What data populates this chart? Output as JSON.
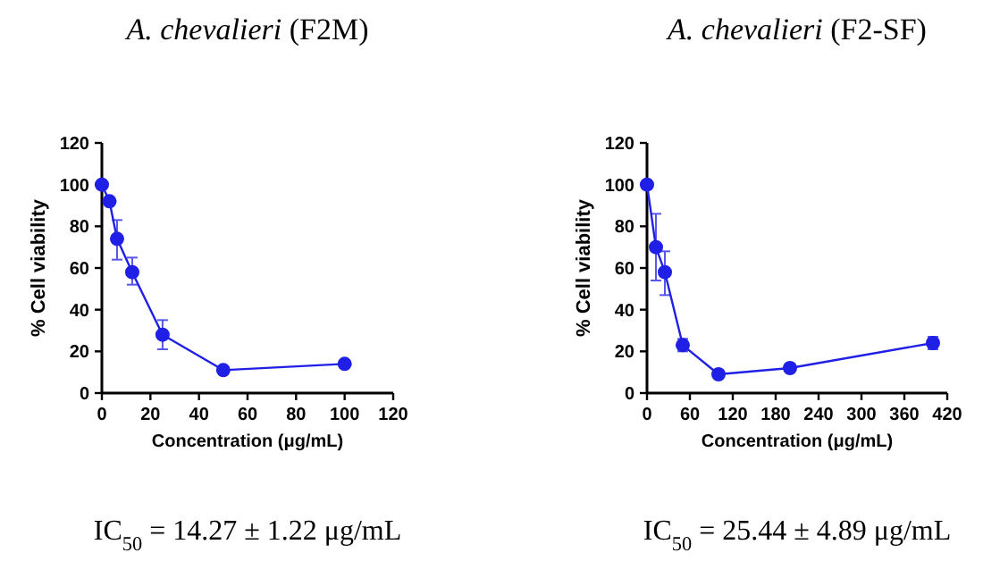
{
  "chart_data": [
    {
      "type": "line",
      "title": "A. chevalieri (F2M)",
      "xlabel": "Concentration (μg/mL)",
      "ylabel": "% Cell viability",
      "annotations": [
        "IC$_{50}$ = 14.27 ± 1.22 μg/mL"
      ],
      "marker": "circle",
      "color": "#1f1fe6",
      "x": [
        0,
        3.125,
        6.25,
        12.5,
        25,
        50,
        100
      ],
      "values": [
        100,
        92,
        74,
        58,
        28,
        11,
        14
      ],
      "errors": [
        null,
        null,
        [
          64,
          83
        ],
        [
          52,
          65
        ],
        [
          21,
          35
        ],
        null,
        null
      ],
      "xlim": [
        0,
        120
      ],
      "xticks": [
        0,
        20,
        40,
        60,
        80,
        100,
        120
      ],
      "ylim": [
        0,
        120
      ],
      "yticks": [
        0,
        20,
        40,
        60,
        80,
        100,
        120
      ]
    },
    {
      "type": "line",
      "title": "A. chevalieri (F2-SF)",
      "xlabel": "Concentration (μg/mL)",
      "ylabel": "% Cell viability",
      "annotations": [
        "IC$_{50}$ = 25.44 ± 4.89 μg/mL"
      ],
      "marker": "circle",
      "color": "#1f1fe6",
      "x": [
        0,
        12.5,
        25,
        50,
        100,
        200,
        400
      ],
      "values": [
        100,
        70,
        58,
        23,
        9,
        12,
        24
      ],
      "errors": [
        null,
        [
          54,
          86
        ],
        [
          47,
          68
        ],
        [
          20,
          26
        ],
        null,
        null,
        [
          21,
          27
        ]
      ],
      "xlim": [
        0,
        420
      ],
      "xticks": [
        0,
        60,
        120,
        180,
        240,
        300,
        360,
        420
      ],
      "ylim": [
        0,
        120
      ],
      "yticks": [
        0,
        20,
        40,
        60,
        80,
        100,
        120
      ]
    }
  ]
}
